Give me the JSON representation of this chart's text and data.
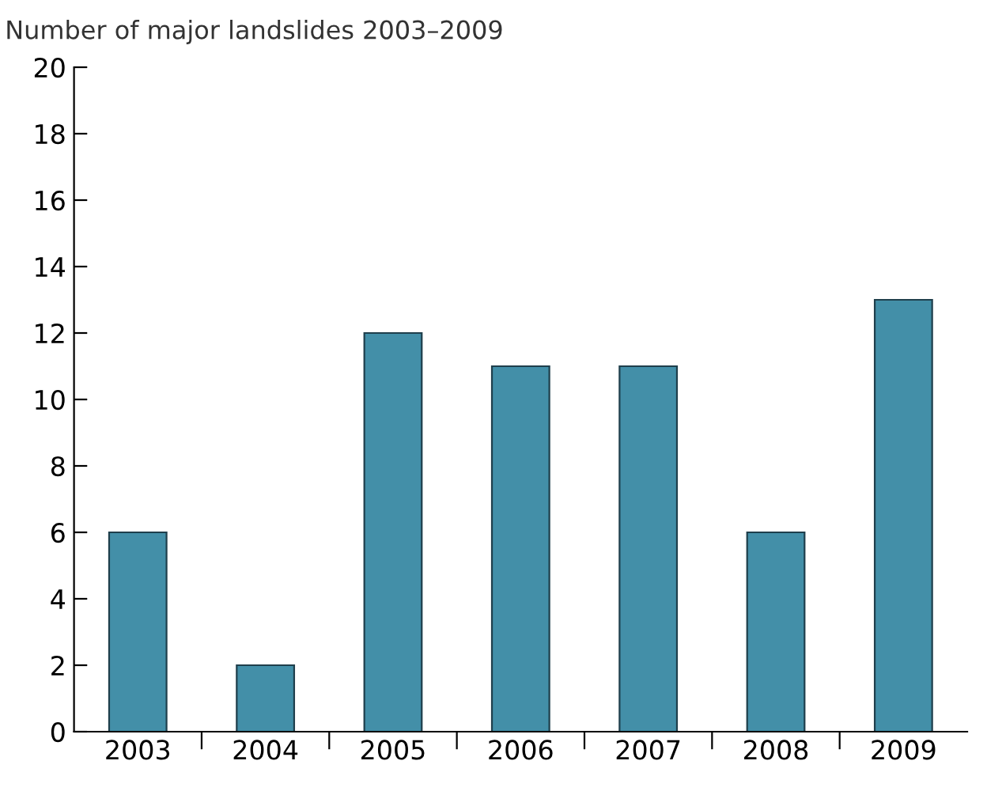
{
  "chart_data": {
    "type": "bar",
    "title": "Number of major landslides 2003–2009",
    "categories": [
      "2003",
      "2004",
      "2005",
      "2006",
      "2007",
      "2008",
      "2009"
    ],
    "values": [
      6,
      2,
      12,
      11,
      11,
      6,
      13
    ],
    "color": "#438fa8",
    "ylim": [
      0,
      20
    ],
    "yticks": [
      0,
      2,
      4,
      6,
      8,
      10,
      12,
      14,
      16,
      18,
      20
    ],
    "grid": false
  }
}
